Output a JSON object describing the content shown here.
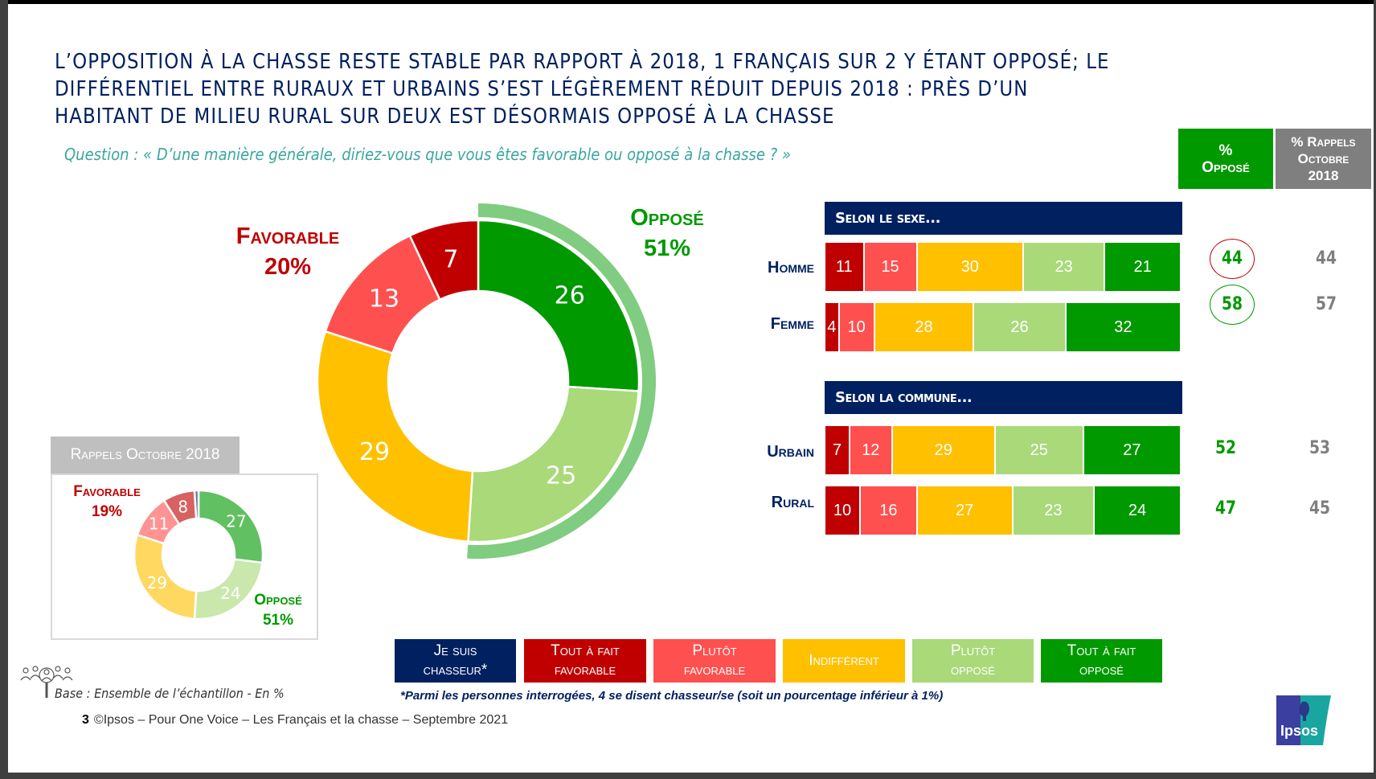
{
  "title_lines": [
    "L’OPPOSITION À LA CHASSE RESTE STABLE PAR RAPPORT À 2018, 1 FRANÇAIS SUR 2 Y ÉTANT OPPOSÉ; LE",
    "DIFFÉRENTIEL ENTRE RURAUX ET URBAINS S’EST LÉGÈREMENT RÉDUIT DEPUIS 2018 : PRÈS D’UN",
    "HABITANT DE MILIEU RURAL SUR DEUX EST DÉSORMAIS OPPOSÉ À LA CHASSE"
  ],
  "question": "Question : « D’une manière générale, diriez-vous que vous êtes favorable ou opposé à la chasse ? »",
  "colors": {
    "chasseur": "#002060",
    "tout_fait_favorable": "#c00000",
    "plutot_favorable": "#ff5050",
    "indifferent": "#ffc000",
    "plutot_oppose": "#a9d979",
    "tout_fait_oppose": "#009900",
    "oppose_arc": "#80cc80",
    "favorable_text": "#c00000",
    "oppose_text": "#009900"
  },
  "table_headers": {
    "oppose_line1": "%",
    "oppose_line2": "Opposé",
    "rappels_line1": "% Rappels",
    "rappels_line2": "Octobre",
    "rappels_line3": "2018"
  },
  "main_donut_labels": {
    "favorable_title": "Favorable",
    "favorable_value": "20%",
    "oppose_title": "Opposé",
    "oppose_value": "51%"
  },
  "rappels_panel": {
    "header": "Rappels Octobre 2018",
    "favorable_title": "Favorable",
    "favorable_value": "19%",
    "oppose_title": "Opposé",
    "oppose_value": "51%"
  },
  "chart_data": [
    {
      "type": "pie",
      "title": "Ensemble 2021",
      "categories": [
        "Tout à fait opposé",
        "Plutôt opposé",
        "Indifférent",
        "Plutôt favorable",
        "Tout à fait favorable"
      ],
      "values": [
        26,
        25,
        29,
        13,
        7
      ],
      "keys": [
        "tout_fait_oppose",
        "plutot_oppose",
        "indifferent",
        "plutot_favorable",
        "tout_fait_favorable"
      ],
      "summary": {
        "favorable": 20,
        "oppose": 51
      }
    },
    {
      "type": "pie",
      "title": "Rappels Octobre 2018",
      "categories": [
        "Tout à fait opposé",
        "Plutôt opposé",
        "Indifférent",
        "Plutôt favorable",
        "Tout à fait favorable",
        "Je suis chasseur"
      ],
      "values": [
        27,
        24,
        29,
        11,
        8,
        1
      ],
      "keys": [
        "tout_fait_oppose",
        "plutot_oppose",
        "indifferent",
        "plutot_favorable",
        "tout_fait_favorable",
        "chasseur"
      ],
      "show_labels": [
        true,
        true,
        true,
        true,
        true,
        false
      ],
      "summary": {
        "favorable": 19,
        "oppose": 51
      }
    },
    {
      "type": "bar",
      "stacked": true,
      "orientation": "horizontal",
      "series_keys": [
        "tout_fait_favorable",
        "plutot_favorable",
        "indifferent",
        "plutot_oppose",
        "tout_fait_oppose"
      ],
      "sections": [
        {
          "title": "Selon le sexe...",
          "rows": [
            {
              "label": "Homme",
              "values": [
                11,
                15,
                30,
                23,
                21
              ],
              "oppose": "44",
              "rappels_2018": "44",
              "circle": "red"
            },
            {
              "label": "Femme",
              "values": [
                4,
                10,
                28,
                26,
                32
              ],
              "oppose": "58",
              "rappels_2018": "57",
              "circle": "green"
            }
          ]
        },
        {
          "title": "Selon la commune...",
          "rows": [
            {
              "label": "Urbain",
              "values": [
                7,
                12,
                29,
                25,
                27
              ],
              "oppose": "52",
              "rappels_2018": "53",
              "circle": null
            },
            {
              "label": "Rural",
              "values": [
                10,
                16,
                27,
                23,
                24
              ],
              "oppose": "47",
              "rappels_2018": "45",
              "circle": null
            }
          ]
        }
      ]
    }
  ],
  "legend": [
    {
      "key": "chasseur",
      "line1": "Je suis",
      "line2": "chasseur*"
    },
    {
      "key": "tout_fait_favorable",
      "line1": "Tout à fait",
      "line2": "favorable"
    },
    {
      "key": "plutot_favorable",
      "line1": "Plutôt",
      "line2": "favorable"
    },
    {
      "key": "indifferent",
      "line1": "Indifférent",
      "line2": ""
    },
    {
      "key": "plutot_oppose",
      "line1": "Plutôt",
      "line2": "opposé"
    },
    {
      "key": "tout_fait_oppose",
      "line1": "Tout à fait",
      "line2": "opposé"
    }
  ],
  "footnote": "*Parmi les personnes interrogées, 4 se disent chasseur/se (soit un pourcentage inférieur à 1%)",
  "base": "Base : Ensemble de l’échantillon - En %",
  "page_number": "3",
  "copyright": "©Ipsos – Pour One Voice – Les Français et la chasse – Septembre 2021",
  "logo_text": "Ipsos"
}
